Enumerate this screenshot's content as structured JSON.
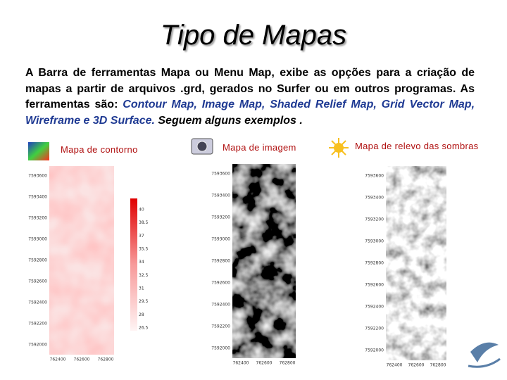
{
  "header": {
    "title": "Tipo de Mapas"
  },
  "body": {
    "intro": "A Barra de ferramentas Mapa ou Menu Map, exibe as opções para a criação de mapas a partir de arquivos .grd, gerados no Surfer ou em outros programas. As ferramentas são: ",
    "tools": "Contour Map, Image Map, Shaded Relief Map, Grid Vector Map, Wireframe e 3D Surface.",
    "closing": " Seguem alguns exemplos ."
  },
  "maps": [
    {
      "caption": "Mapa de contorno",
      "y_labels": [
        "7593600",
        "7593400",
        "7593200",
        "7593000",
        "7592800",
        "7592600",
        "7592400",
        "7592200",
        "7592000"
      ],
      "x_labels": [
        "762400",
        "762600",
        "762800"
      ],
      "scale_labels": [
        "40",
        "38.5",
        "37",
        "35.5",
        "34",
        "32.5",
        "31",
        "29.5",
        "28",
        "26.5"
      ]
    },
    {
      "caption": "Mapa de imagem",
      "y_labels": [
        "7593600",
        "7593400",
        "7593200",
        "7593000",
        "7592800",
        "7592600",
        "7592400",
        "7592200",
        "7592000"
      ],
      "x_labels": [
        "762400",
        "762600",
        "762800"
      ]
    },
    {
      "caption": "Mapa de relevo das sombras",
      "y_labels": [
        "7593600",
        "7593400",
        "7593200",
        "7593000",
        "7592800",
        "7592600",
        "7592400",
        "7592200",
        "7592000"
      ],
      "x_labels": [
        "762400",
        "762600",
        "762800"
      ]
    }
  ]
}
